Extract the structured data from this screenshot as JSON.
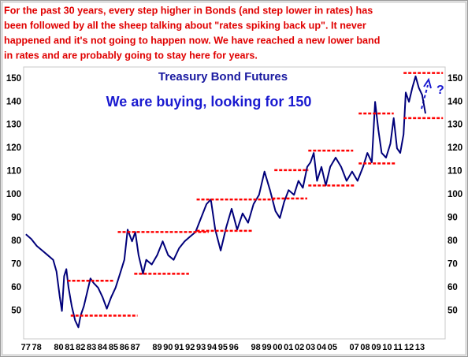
{
  "chart_data": {
    "type": "line",
    "title": "Treasury Bond Futures",
    "subtitle": "We are buying, looking for 150",
    "note_lines": [
      "For the past 30 years, every step higher in Bonds (and step lower in rates) has",
      "been followed by all the sheep talking about \"rates spiking back up\". It never",
      "happened and it's not going to happen now. We have reached a new lower band",
      "in rates and are probably going to stay here for years."
    ],
    "arrow_label": "?",
    "color": "#00007a",
    "x": [
      1977.0,
      1977.5,
      1978.0,
      1978.5,
      1979.0,
      1979.5,
      1979.8,
      1980.1,
      1980.3,
      1980.5,
      1980.7,
      1980.9,
      1981.2,
      1981.5,
      1981.8,
      1982.0,
      1982.3,
      1982.6,
      1982.9,
      1983.2,
      1983.6,
      1984.0,
      1984.4,
      1984.8,
      1985.2,
      1985.6,
      1986.0,
      1986.3,
      1986.7,
      1987.0,
      1987.3,
      1987.7,
      1988.0,
      1988.5,
      1989.0,
      1989.5,
      1990.0,
      1990.5,
      1991.0,
      1991.5,
      1992.0,
      1992.5,
      1993.0,
      1993.5,
      1993.9,
      1994.3,
      1994.8,
      1995.3,
      1995.8,
      1996.3,
      1996.8,
      1997.3,
      1997.8,
      1998.3,
      1998.8,
      1999.3,
      1999.8,
      2000.2,
      2000.6,
      2001.0,
      2001.5,
      2001.9,
      2002.3,
      2002.7,
      2003.0,
      2003.3,
      2003.6,
      2004.0,
      2004.4,
      2004.8,
      2005.3,
      2005.8,
      2006.3,
      2006.8,
      2007.3,
      2007.8,
      2008.2,
      2008.6,
      2008.9,
      2009.2,
      2009.5,
      2009.9,
      2010.3,
      2010.6,
      2010.9,
      2011.2,
      2011.5,
      2011.7,
      2012.0,
      2012.3,
      2012.6,
      2012.9,
      2013.2,
      2013.5
    ],
    "values": [
      83,
      81,
      78,
      76,
      74,
      72,
      67,
      56,
      50,
      65,
      68,
      60,
      52,
      46,
      43,
      48,
      52,
      58,
      64,
      62,
      60,
      56,
      51,
      56,
      60,
      66,
      72,
      85,
      80,
      84,
      74,
      66,
      72,
      70,
      74,
      80,
      74,
      72,
      77,
      80,
      82,
      84,
      90,
      96,
      98,
      85,
      76,
      86,
      94,
      85,
      92,
      88,
      96,
      100,
      110,
      102,
      93,
      90,
      97,
      102,
      100,
      106,
      103,
      112,
      114,
      118,
      106,
      112,
      104,
      112,
      116,
      112,
      106,
      110,
      106,
      112,
      118,
      114,
      140,
      128,
      118,
      116,
      122,
      133,
      120,
      118,
      126,
      144,
      140,
      146,
      151,
      146,
      143,
      135
    ],
    "bands": [
      {
        "x": [
          1980.8,
          1985.1
        ],
        "value": 63
      },
      {
        "x": [
          1981.1,
          1987.2
        ],
        "value": 48
      },
      {
        "x": [
          1985.4,
          1993.7
        ],
        "value": 84
      },
      {
        "x": [
          1986.9,
          1991.9
        ],
        "value": 66
      },
      {
        "x": [
          1992.6,
          1999.7
        ],
        "value": 98
      },
      {
        "x": [
          1992.6,
          1997.7
        ],
        "value": 84.5
      },
      {
        "x": [
          1999.7,
          2002.8
        ],
        "value": 110.6
      },
      {
        "x": [
          1999.5,
          2002.7
        ],
        "value": 98.4
      },
      {
        "x": [
          2002.8,
          2006.9
        ],
        "value": 119
      },
      {
        "x": [
          2002.8,
          2007.0
        ],
        "value": 104
      },
      {
        "x": [
          2007.4,
          2010.6
        ],
        "value": 135
      },
      {
        "x": [
          2007.4,
          2010.8
        ],
        "value": 113.5
      },
      {
        "x": [
          2011.5,
          2015.1
        ],
        "value": 152.4
      },
      {
        "x": [
          2011.5,
          2015.1
        ],
        "value": 133
      }
    ],
    "band_color": "#ff0000",
    "xlim": [
      1976.8,
      2015.3
    ],
    "ylim": [
      38,
      155
    ],
    "yticks": [
      50,
      60,
      70,
      80,
      90,
      100,
      110,
      120,
      130,
      140,
      150
    ],
    "xticks": [
      {
        "value": 1977,
        "label": "77"
      },
      {
        "value": 1978,
        "label": "78"
      },
      {
        "value": 1980,
        "label": "80"
      },
      {
        "value": 1981,
        "label": "81"
      },
      {
        "value": 1982,
        "label": "82"
      },
      {
        "value": 1983,
        "label": "83"
      },
      {
        "value": 1984,
        "label": "84"
      },
      {
        "value": 1985,
        "label": "85"
      },
      {
        "value": 1986,
        "label": "86"
      },
      {
        "value": 1987,
        "label": "87"
      },
      {
        "value": 1989,
        "label": "89"
      },
      {
        "value": 1990,
        "label": "90"
      },
      {
        "value": 1991,
        "label": "91"
      },
      {
        "value": 1992,
        "label": "92"
      },
      {
        "value": 1993,
        "label": "93"
      },
      {
        "value": 1994,
        "label": "94"
      },
      {
        "value": 1995,
        "label": "95"
      },
      {
        "value": 1996,
        "label": "96"
      },
      {
        "value": 1998,
        "label": "98"
      },
      {
        "value": 1999,
        "label": "99"
      },
      {
        "value": 2000,
        "label": "00"
      },
      {
        "value": 2001,
        "label": "01"
      },
      {
        "value": 2002,
        "label": "02"
      },
      {
        "value": 2003,
        "label": "03"
      },
      {
        "value": 2004,
        "label": "04"
      },
      {
        "value": 2005,
        "label": "05"
      },
      {
        "value": 2007,
        "label": "07"
      },
      {
        "value": 2008,
        "label": "08"
      },
      {
        "value": 2009,
        "label": "09"
      },
      {
        "value": 2010,
        "label": "10"
      },
      {
        "value": 2011,
        "label": "11"
      },
      {
        "value": 2012,
        "label": "12"
      },
      {
        "value": 2013,
        "label": "13"
      }
    ],
    "grid": false
  }
}
